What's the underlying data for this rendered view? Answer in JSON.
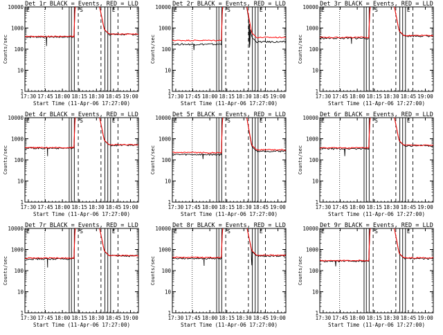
{
  "chart_data": {
    "type": "line",
    "x_tick_labels": [
      "17:30",
      "17:45",
      "18:00",
      "18:15",
      "18:30",
      "18:45",
      "19:00"
    ],
    "y_tick_labels": [
      "1",
      "10",
      "100",
      "1000",
      "10000"
    ],
    "ylabel": "Counts/sec",
    "xlabel": "Start Time (11-Apr-06 17:27:00)",
    "yscale": "log",
    "ylim": [
      1,
      10000
    ],
    "x_start_minutes": 0,
    "x_end_minutes": 100,
    "series_colors": {
      "events": "#000000",
      "lld": "#ff0000"
    },
    "marker_letters": [
      "S",
      "E"
    ],
    "panels": [
      {
        "title": "Det 1r BLACK = Events, RED = LLD",
        "event_baseline_before": 380,
        "event_baseline_after": 500,
        "lld_baseline_before": 400,
        "lld_baseline_after": 520,
        "dips": [
          {
            "x": 19,
            "y": 140
          }
        ]
      },
      {
        "title": "Det 2r BLACK = Events, RED = LLD",
        "event_baseline_before": 170,
        "event_baseline_after": 220,
        "lld_baseline_before": 260,
        "lld_baseline_after": 360,
        "dips": [
          {
            "x": 19,
            "y": 90
          },
          {
            "x": 68,
            "y": 120
          }
        ]
      },
      {
        "title": "Det 3r BLACK = Events, RED = LLD",
        "event_baseline_before": 330,
        "event_baseline_after": 420,
        "lld_baseline_before": 360,
        "lld_baseline_after": 440,
        "dips": [
          {
            "x": 28,
            "y": 180
          }
        ]
      },
      {
        "title": "Det 4r BLACK = Events, RED = LLD",
        "event_baseline_before": 360,
        "event_baseline_after": 500,
        "lld_baseline_before": 380,
        "lld_baseline_after": 520,
        "dips": [
          {
            "x": 20,
            "y": 150
          }
        ]
      },
      {
        "title": "Det 5r BLACK = Events, RED = LLD",
        "event_baseline_before": 180,
        "event_baseline_after": 260,
        "lld_baseline_before": 220,
        "lld_baseline_after": 300,
        "dips": [
          {
            "x": 27,
            "y": 110
          }
        ]
      },
      {
        "title": "Det 6r BLACK = Events, RED = LLD",
        "event_baseline_before": 340,
        "event_baseline_after": 470,
        "lld_baseline_before": 370,
        "lld_baseline_after": 490,
        "dips": [
          {
            "x": 22,
            "y": 150
          }
        ]
      },
      {
        "title": "Det 7r BLACK = Events, RED = LLD",
        "event_baseline_before": 360,
        "event_baseline_after": 500,
        "lld_baseline_before": 390,
        "lld_baseline_after": 520,
        "dips": [
          {
            "x": 20,
            "y": 140
          }
        ]
      },
      {
        "title": "Det 8r BLACK = Events, RED = LLD",
        "event_baseline_before": 380,
        "event_baseline_after": 500,
        "lld_baseline_before": 420,
        "lld_baseline_after": 540,
        "dips": [
          {
            "x": 28,
            "y": 170
          },
          {
            "x": 70,
            "y": 180
          }
        ]
      },
      {
        "title": "Det 9r BLACK = Events, RED = LLD",
        "event_baseline_before": 280,
        "event_baseline_after": 380,
        "lld_baseline_before": 300,
        "lld_baseline_after": 400,
        "dips": [
          {
            "x": 14,
            "y": 160
          }
        ]
      }
    ],
    "vertical_markers": {
      "dotted": [
        17.5
      ],
      "solid": [
        39,
        41,
        43.5,
        70.5,
        73,
        75.5
      ],
      "dashed": [
        47,
        67,
        82
      ]
    }
  }
}
